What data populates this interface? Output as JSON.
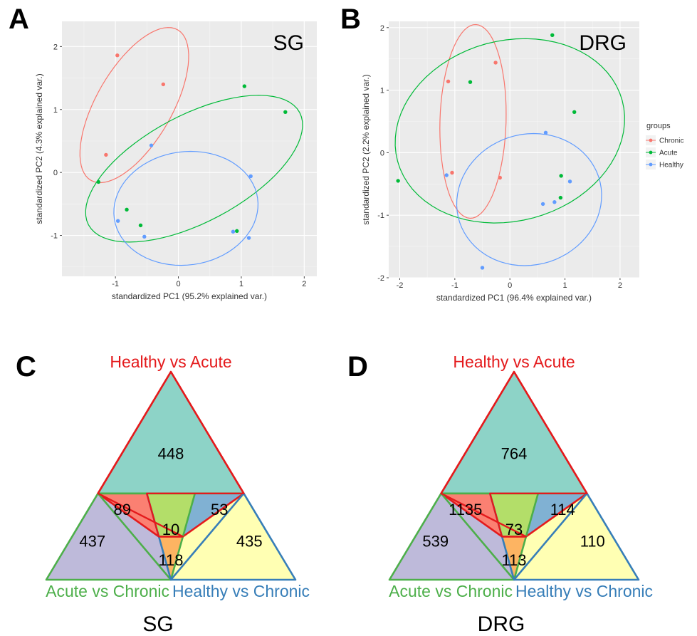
{
  "panel_letters": {
    "A": "A",
    "B": "B",
    "C": "C",
    "D": "D"
  },
  "colors": {
    "chronic": "#F8766D",
    "acute": "#00BA38",
    "healthy": "#619CFF",
    "panel_bg": "#EBEBEB",
    "venn_red": "#E41A1C",
    "venn_green": "#4DAF4A",
    "venn_blue": "#377EB8"
  },
  "chart_data": [
    {
      "type": "scatter",
      "tag": "SG",
      "xlabel": "standardized PC1 (95.2% explained var.)",
      "ylabel": "standardized PC2 (4.3% explained var.)",
      "xlim": [
        -1.85,
        2.2
      ],
      "ylim": [
        -1.65,
        2.4
      ],
      "xticks": [
        -1,
        0,
        1,
        2
      ],
      "yticks": [
        -1,
        0,
        1,
        2
      ],
      "grid": true,
      "series": [
        {
          "name": "Chronic",
          "color": "#F8766D",
          "points": [
            [
              -0.97,
              1.86
            ],
            [
              -0.24,
              1.4
            ],
            [
              -1.15,
              0.28
            ]
          ],
          "ellipse": {
            "cx": -0.7,
            "cy": 1.07,
            "rx": 1.38,
            "ry": 0.6,
            "angle_deg": 60
          }
        },
        {
          "name": "Acute",
          "color": "#00BA38",
          "points": [
            [
              1.05,
              1.37
            ],
            [
              1.7,
              0.96
            ],
            [
              -1.27,
              -0.15
            ],
            [
              -0.82,
              -0.59
            ],
            [
              -0.6,
              -0.84
            ],
            [
              0.93,
              -0.93
            ]
          ],
          "ellipse": {
            "cx": 0.25,
            "cy": 0.06,
            "rx": 1.9,
            "ry": 0.85,
            "angle_deg": 28
          }
        },
        {
          "name": "Healthy",
          "color": "#619CFF",
          "points": [
            [
              -0.43,
              0.43
            ],
            [
              1.15,
              -0.06
            ],
            [
              -0.96,
              -0.77
            ],
            [
              -0.54,
              -1.02
            ],
            [
              0.87,
              -0.94
            ],
            [
              1.12,
              -1.04
            ]
          ],
          "ellipse": {
            "cx": 0.12,
            "cy": -0.57,
            "rx": 1.15,
            "ry": 0.9,
            "angle_deg": 8
          }
        }
      ]
    },
    {
      "type": "scatter",
      "tag": "DRG",
      "xlabel": "standardized PC1 (96.4% explained var.)",
      "ylabel": "standardized PC2 (2.2% explained var.)",
      "xlim": [
        -2.2,
        2.35
      ],
      "ylim": [
        -2.0,
        2.1
      ],
      "xticks": [
        -2,
        -1,
        0,
        1,
        2
      ],
      "yticks": [
        -2,
        -1,
        0,
        1,
        2
      ],
      "grid": true,
      "legend": {
        "title": "groups",
        "position": "right",
        "entries": [
          "Chronic",
          "Acute",
          "Healthy"
        ]
      },
      "series": [
        {
          "name": "Chronic",
          "color": "#F8766D",
          "points": [
            [
              -1.12,
              1.14
            ],
            [
              -0.26,
              1.44
            ],
            [
              -1.05,
              -0.32
            ],
            [
              -0.18,
              -0.4
            ]
          ],
          "ellipse": {
            "cx": -0.67,
            "cy": 0.5,
            "rx": 1.55,
            "ry": 0.6,
            "angle_deg": 88
          }
        },
        {
          "name": "Acute",
          "color": "#00BA38",
          "points": [
            [
              -2.03,
              -0.45
            ],
            [
              -0.72,
              1.13
            ],
            [
              0.77,
              1.88
            ],
            [
              1.17,
              0.65
            ],
            [
              0.93,
              -0.37
            ],
            [
              0.92,
              -0.72
            ]
          ],
          "ellipse": {
            "cx": 0.0,
            "cy": 0.35,
            "rx": 2.1,
            "ry": 1.45,
            "angle_deg": 10
          }
        },
        {
          "name": "Healthy",
          "color": "#619CFF",
          "points": [
            [
              0.65,
              0.32
            ],
            [
              -1.15,
              -0.36
            ],
            [
              1.09,
              -0.46
            ],
            [
              0.6,
              -0.82
            ],
            [
              0.81,
              -0.79
            ],
            [
              -0.5,
              -1.84
            ]
          ],
          "ellipse": {
            "cx": 0.35,
            "cy": -0.75,
            "rx": 1.32,
            "ry": 1.05,
            "angle_deg": 8
          }
        }
      ]
    },
    {
      "type": "venn",
      "name": "SG",
      "labels": {
        "top": "Healthy vs Acute",
        "left": "Acute vs Chronic",
        "right": "Healthy vs Chronic"
      },
      "counts": {
        "ha_only": 448,
        "ac_only": 437,
        "hc_only": 435,
        "ha_ac": 89,
        "ha_hc": 53,
        "ac_hc": 118,
        "all": 10
      }
    },
    {
      "type": "venn",
      "name": "DRG",
      "labels": {
        "top": "Healthy vs Acute",
        "left": "Acute vs Chronic",
        "right": "Healthy vs Chronic"
      },
      "counts": {
        "ha_only": 764,
        "ac_only": 539,
        "hc_only": 110,
        "ha_ac": 1135,
        "ha_hc": 114,
        "ac_hc": 113,
        "all": 73
      }
    }
  ]
}
